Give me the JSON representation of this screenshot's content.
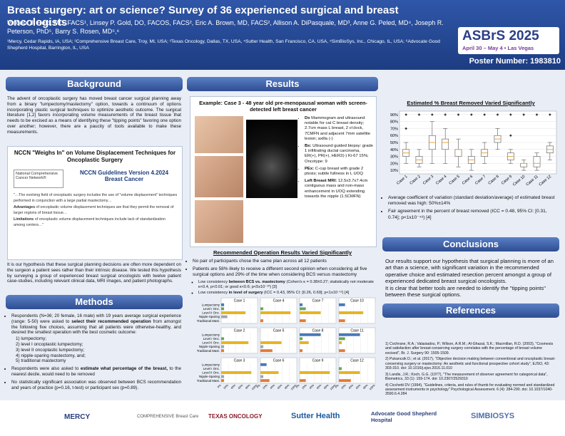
{
  "header": {
    "title": "Breast surgery: art or science? Survey of 36 experienced surgical and breast oncologists",
    "authors": "Vincent J. Reid, MD, FACS¹, Linsey P. Gold, DO, FACOS, FACS², Eric A. Brown, MD, FACS², Allison A. DiPasquale, MD³, Anne G. Peled, MD⁴, Joseph R. Peterson, PhD⁵, Barry S. Rosen, MD⁵,⁶",
    "affiliations": "¹Mercy, Cedar Rapids, IA, USA; ²Comprehensive Breast Care, Troy, MI, USA; ³Texas Oncology, Dallas, TX, USA, ⁴Sutter Health, San Francisco, CA, USA, ⁵SimBioSys, Inc., Chicago, IL, USA; ⁶Advocate Good Shepherd Hospital, Barrington, IL, USA",
    "conference": "ASBrS 2025",
    "dates": "April 30 – May 4 • Las Vegas",
    "poster_number": "Poster Number: 1983810"
  },
  "background": {
    "heading": "Background",
    "text": "The advent of oncoplastic surgery has moved breast cancer surgical planning away from a binary \"lumpectomy/mastectomy\" option, towards a continuum of options incorporating plastic surgical techniques to optimize aesthetic outcome. The surgical literature [1,2] favors incorporating volume measurements of the breast tissue that needs to be excised as a means of identifying these \"tipping points\" favoring one option over another; however, there are a paucity of tools available to make these measurements."
  },
  "nccn": {
    "title": "NCCN \"Weighs In\" on Volume Displacement Techniques for Oncoplastic Surgery",
    "logo": "National Comprehensive Cancer Network®",
    "version": "NCCN Guidelines Version 4.2024 Breast Cancer",
    "quote1": "\"…The evolving field of oncoplastic surgery includes the use of \"volume displacement\" techniques performed in conjunction with a large partial mastectomy…",
    "quote2_lead": "Advantages",
    "quote2": "of oncoplastic volume displacement techniques are that they permit the removal of larger regions of breast tissue…",
    "quote3_lead": "Limitations",
    "quote3": "of oncoplastic volume displacement techniques include lack of standardization among centers…\""
  },
  "hypothesis": "It is our hypothesis that these surgical planning decisions are often more dependent on the surgeon a patient sees rather than their intrinsic disease. We tested this hypothesis by surveying a group of experienced breast surgical oncologists with twelve patient case-studies, including relevant clinical data, MRI images, and patient photographs.",
  "methods": {
    "heading": "Methods",
    "b1_a": "Respondents (N=36; 20 female, 16 male) with 19 years average surgical experience (range: 5-50) were asked to",
    "b1_bold": "select their recommended operation",
    "b1_b": "from amongst the following five choices, assuming that all patients were otherwise-healthy, and desired the smallest operation with the best cosmetic outcome:",
    "choices": [
      "1) lumpectomy;",
      "2) level I oncoplastic lumpectomy;",
      "3) level II oncoplastic lumpectomy;",
      "4) nipple-sparing mastectomy, and;",
      "5) traditional mastectomy"
    ],
    "b2_a": "Respondents were also asked to",
    "b2_bold": "estimate what percentage of the breast,",
    "b2_b": " to the nearest decile, would need to be removed",
    "b3": "No statistically significant association was observed between BCS recommendation and years of practice (p=0.16, t-test) or participant sex (p=0.89)."
  },
  "results": {
    "heading": "Results",
    "case": {
      "title": "Example: Case 3 - 48 year old pre-menopausal woman with screen-detected left breast cancer",
      "items": [
        {
          "lead": "Dx",
          "text": "Mammogram and ultrasound notable for cat C breast density; 2.7cm mass L breast, 2 o'clock, 7CMFN and adjacent 7mm satellite lesion; axilla (-)"
        },
        {
          "lead": "Bx:",
          "text": "Ultrasound guided biopsy: grade 1 infiltrating ductal carcinoma, ER(+), PR(+), HER2(-) Ki-67 15%; Oncotype: 9"
        },
        {
          "lead": "PEx:",
          "text": "C-cup breast with grade 2 ptosis; subtle fullness in L UOQ"
        },
        {
          "lead": "Left Breast MRI:",
          "text": "12.5x3.7x7.4cm contiguous mass and non-mass enhancement in UOQ extending towards the nipple (1.5CMFN)"
        }
      ]
    },
    "recommended": {
      "title": "Recommended Operation Results Varied Significantly",
      "b1": "No pair of participants chose the same plan across all 12 patients",
      "b2": "Patients are 58% likely to receive a different second opinion when considering all five surgical options and 29% of the time when considering BCS versus mastectomy",
      "s1_a": "Low consistency",
      "s1_bold": "between BCS vs. mastectomy",
      "s1_b": "(Cohen's κ = 0.38±0.27; statistically not moderate κ<0.4, p<0.01; or good κ<0.6; p<5x10⁻¹⁰) [3]",
      "s2_a": "Low consistency",
      "s2_bold": "in level of surgery",
      "s2_b": "(ICC = 0.43, 95% CI: [0.26, 0.69]; p<1x10⁻¹²) [4]"
    },
    "bars": {
      "type": "bar",
      "orientation": "horizontal",
      "categories": [
        "Lumpectomy",
        "Level I Onc.",
        "Level II Onc.",
        "Nipple-Sparing",
        "Traditional Mast."
      ],
      "colors": [
        "#4a78b8",
        "#6aa84f",
        "#e6b422",
        "#9aa5b5",
        "#e07b39"
      ],
      "xlim": [
        0,
        100
      ],
      "xticks": [
        {
          "value": 0,
          "label": "0%"
        },
        {
          "value": 20,
          "label": "20%"
        },
        {
          "value": 40,
          "label": "40%"
        },
        {
          "value": 60,
          "label": "60%"
        },
        {
          "value": 80,
          "label": "80%"
        },
        {
          "value": 100,
          "label": "100%"
        }
      ],
      "grid": true,
      "cases": [
        {
          "name": "Case 1",
          "values": [
            8,
            8,
            67,
            17,
            0
          ]
        },
        {
          "name": "Case 4",
          "values": [
            0,
            8,
            83,
            0,
            8
          ]
        },
        {
          "name": "Case 7",
          "values": [
            8,
            17,
            58,
            0,
            17
          ]
        },
        {
          "name": "Case 10",
          "values": [
            17,
            0,
            67,
            0,
            17
          ]
        },
        {
          "name": "Case 2",
          "values": [
            0,
            8,
            75,
            8,
            8
          ]
        },
        {
          "name": "Case 5",
          "values": [
            0,
            0,
            58,
            8,
            33
          ]
        },
        {
          "name": "Case 8",
          "values": [
            58,
            8,
            25,
            0,
            8
          ]
        },
        {
          "name": "Case 11",
          "values": [
            58,
            17,
            8,
            0,
            17
          ]
        },
        {
          "name": "Case 3",
          "values": [
            0,
            0,
            83,
            8,
            8
          ]
        },
        {
          "name": "Case 6",
          "values": [
            17,
            0,
            50,
            8,
            25
          ]
        },
        {
          "name": "Case 9",
          "values": [
            0,
            0,
            83,
            0,
            17
          ]
        },
        {
          "name": "Case 12",
          "values": [
            0,
            8,
            58,
            0,
            33
          ]
        }
      ]
    }
  },
  "boxplot": {
    "type": "box",
    "title": "Estimated % Breast Removed Varied Significantly",
    "ylim": [
      5,
      95
    ],
    "yticks": [
      {
        "value": 10,
        "label": "10%"
      },
      {
        "value": 20,
        "label": "20%"
      },
      {
        "value": 30,
        "label": "30%"
      },
      {
        "value": 40,
        "label": "40%"
      },
      {
        "value": 50,
        "label": "50%"
      },
      {
        "value": 60,
        "label": "60%"
      },
      {
        "value": 70,
        "label": "70%"
      },
      {
        "value": 80,
        "label": "80%"
      },
      {
        "value": 90,
        "label": "90%"
      }
    ],
    "grid": true,
    "box_color": "#ffffff",
    "median_color": "#e8a33c",
    "boxes": [
      {
        "name": "Case 1",
        "whislo": 20,
        "q1": 30,
        "med": 35,
        "q3": 40,
        "whishi": 50,
        "fliers": [
          70,
          90
        ]
      },
      {
        "name": "Case 2",
        "whislo": 15,
        "q1": 20,
        "med": 25,
        "q3": 30,
        "whishi": 40,
        "fliers": [
          90
        ]
      },
      {
        "name": "Case 3",
        "whislo": 20,
        "q1": 40,
        "med": 50,
        "q3": 60,
        "whishi": 80,
        "fliers": [
          90
        ]
      },
      {
        "name": "Case 4",
        "whislo": 20,
        "q1": 40,
        "med": 50,
        "q3": 55,
        "whishi": 70,
        "fliers": [
          90
        ]
      },
      {
        "name": "Case 5",
        "whislo": 15,
        "q1": 30,
        "med": 40,
        "q3": 40,
        "whishi": 55,
        "fliers": [
          90
        ]
      },
      {
        "name": "Case 6",
        "whislo": 10,
        "q1": 20,
        "med": 25,
        "q3": 30,
        "whishi": 40,
        "fliers": [
          90
        ]
      },
      {
        "name": "Case 7",
        "whislo": 20,
        "q1": 30,
        "med": 35,
        "q3": 40,
        "whishi": 50,
        "fliers": [
          90
        ]
      },
      {
        "name": "Case 8",
        "whislo": 40,
        "q1": 50,
        "med": 55,
        "q3": 60,
        "whishi": 70,
        "fliers": [
          90
        ]
      },
      {
        "name": "Case 9",
        "whislo": 20,
        "q1": 25,
        "med": 30,
        "q3": 35,
        "whishi": 40,
        "fliers": [
          60,
          90
        ]
      },
      {
        "name": "Case 10",
        "whislo": 10,
        "q1": 15,
        "med": 20,
        "q3": 20,
        "whishi": 25,
        "fliers": [
          90
        ]
      },
      {
        "name": "Case 11",
        "whislo": 10,
        "q1": 15,
        "med": 20,
        "q3": 30,
        "whishi": 35,
        "fliers": [
          90
        ]
      },
      {
        "name": "Case 12",
        "whislo": 25,
        "q1": 35,
        "med": 40,
        "q3": 45,
        "whishi": 50,
        "fliers": [
          90
        ]
      }
    ],
    "notes": [
      "Average coefficient of variation (standard deviation/average) of estimated breast removed was high: 50%±14%",
      "Fair agreement in the percent of breast removed (ICC = 0.48, 95% CI: [0.31, 0.74]; p<1x10⁻⁴⁸) [4]"
    ]
  },
  "conclusions": {
    "heading": "Conclusions",
    "p1": "Our results support our hypothesis that surgical planning is more of an art than a science, with significant variation in the recommended operative choice and estimated resection percent amongst a group of experienced dedicated breast surgical oncologists.",
    "p2": "It is clear that better tools are needed to identify the \"tipping points\" between these surgical options."
  },
  "references": {
    "heading": "References",
    "items": [
      "1) Cochrane, R.A.; Valasiadou, P.; Wilson, A.R.M.; Al-Ghazal, S.K.; Macmillan, R.D. (2003), \"Cosmesis and satisfaction after breast-conserving surgery correlates with the percentage of breast volume excised\", Br. J. Surgery 90: 1505-1509.",
      "2) Pukancsik D.; et al. (2017), \"Objective decision making between conventional and oncoplastic breast-conserving surgery or mastectomy: An aesthetic and functional prospective cohort study\", EJSO, 43: 303-310. doi: 10.1016/j.ejso.2016.11.010",
      "3) Landis, J.R.; Koch, G.G. (1977), \"The measurement of observer agreement for categorical data\", Biometrics, 33 (1): 159-174. doi: 10.2307/2529310",
      "4) Cicchetti DV (1994), \"Guidelines, criteria, and rules of thumb for evaluating normed and standardized assessment instruments in psychology\" Psychological Assessment. 6 (4): 284-290. doi: 10.1037/1040-3590.6.4.284"
    ]
  },
  "footer": {
    "logos": [
      "MERCY",
      "COMPREHENSIVE Breast Care",
      "TEXAS ONCOLOGY",
      "Sutter Health",
      "Advocate Good Shepherd Hospital",
      "SIMBIOSYS"
    ]
  }
}
